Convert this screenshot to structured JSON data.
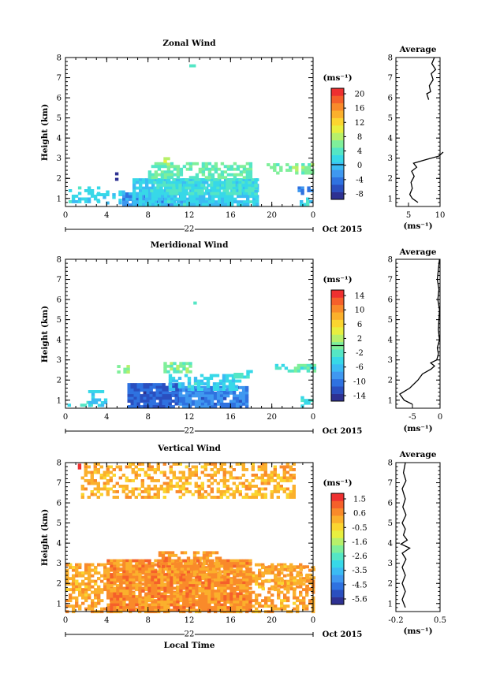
{
  "x_axis": {
    "ticks": [
      "0",
      "4",
      "8",
      "12",
      "16",
      "20",
      "0"
    ],
    "date_label": "22",
    "month_label": "Oct 2015",
    "xlabel": "Local Time"
  },
  "y_axis": {
    "ylabel": "Height (km)",
    "ticks": [
      "1",
      "2",
      "3",
      "4",
      "5",
      "6",
      "7",
      "8"
    ],
    "range": [
      0.6,
      8.0
    ]
  },
  "unit": "(ms⁻¹)",
  "avg_title": "Average",
  "chart_data": [
    {
      "type": "heatmap",
      "title": "Zonal Wind",
      "xlabel": "",
      "ylabel": "Height (km)",
      "x_range_hours": [
        0,
        24
      ],
      "y_range_km": [
        0.6,
        8.0
      ],
      "colorbar": {
        "ticks": [
          "20",
          "16",
          "12",
          "8",
          "4",
          "0",
          "-4",
          "-8"
        ],
        "min": -10,
        "max": 22,
        "zero_line": 0
      },
      "regions": [
        {
          "x0": 0.3,
          "x1": 3.3,
          "y0": 0.9,
          "y1": 1.6,
          "value": 1.5,
          "density": 0.45
        },
        {
          "x0": 3.0,
          "x1": 5.5,
          "y0": 0.8,
          "y1": 1.4,
          "value": 1.0,
          "density": 0.4
        },
        {
          "x0": 5.5,
          "x1": 12.5,
          "y0": 0.65,
          "y1": 1.3,
          "value": -2.5,
          "density": 0.95
        },
        {
          "x0": 6.5,
          "x1": 18.5,
          "y0": 0.7,
          "y1": 2.0,
          "value": 1.0,
          "density": 0.85
        },
        {
          "x0": 8.2,
          "x1": 18.5,
          "y0": 1.2,
          "y1": 2.0,
          "value": 3.0,
          "density": 0.75
        },
        {
          "x0": 8.0,
          "x1": 18.0,
          "y0": 2.0,
          "y1": 2.8,
          "value": 5.0,
          "density": 0.6
        },
        {
          "x0": 4.5,
          "x1": 5.0,
          "y0": 1.9,
          "y1": 2.3,
          "value": -8.0,
          "density": 0.5
        },
        {
          "x0": 18.0,
          "x1": 18.6,
          "y0": 1.1,
          "y1": 1.7,
          "value": 2.0,
          "density": 0.6
        },
        {
          "x0": 19.5,
          "x1": 24.0,
          "y0": 2.3,
          "y1": 2.75,
          "value": 6.0,
          "density": 0.55
        },
        {
          "x0": 22.5,
          "x1": 23.9,
          "y0": 1.2,
          "y1": 1.6,
          "value": -4.0,
          "density": 0.5
        },
        {
          "x0": 22.7,
          "x1": 23.9,
          "y0": 0.7,
          "y1": 1.05,
          "value": 1.5,
          "density": 0.5
        },
        {
          "x0": 9.5,
          "x1": 10.0,
          "y0": 2.75,
          "y1": 3.05,
          "value": 9.0,
          "density": 0.6
        },
        {
          "x0": 12.0,
          "x1": 12.4,
          "y0": 7.6,
          "y1": 7.8,
          "value": 3.0,
          "density": 0.6
        }
      ],
      "average_profile": {
        "x_range": [
          3,
          10
        ],
        "xticks": [
          "5",
          "10"
        ],
        "points": [
          [
            6.5,
            0.8
          ],
          [
            5.6,
            1.0
          ],
          [
            5.2,
            1.2
          ],
          [
            5.6,
            1.5
          ],
          [
            5.4,
            1.8
          ],
          [
            5.9,
            2.1
          ],
          [
            5.5,
            2.35
          ],
          [
            6.3,
            2.55
          ],
          [
            5.8,
            2.75
          ],
          [
            8.0,
            2.95
          ],
          [
            9.8,
            3.1
          ],
          [
            10.5,
            3.3
          ]
        ],
        "points_upper": [
          [
            8.2,
            5.9
          ],
          [
            7.9,
            6.2
          ],
          [
            8.5,
            6.3
          ],
          [
            8.3,
            6.6
          ],
          [
            8.9,
            6.9
          ],
          [
            8.6,
            7.2
          ],
          [
            9.3,
            7.4
          ],
          [
            8.7,
            7.7
          ],
          [
            9.1,
            8.0
          ]
        ]
      }
    },
    {
      "type": "heatmap",
      "title": "Meridional Wind",
      "xlabel": "",
      "ylabel": "Height (km)",
      "x_range_hours": [
        0,
        24
      ],
      "y_range_km": [
        0.6,
        8.0
      ],
      "colorbar": {
        "ticks": [
          "14",
          "10",
          "6",
          "2",
          "-2",
          "-6",
          "-10",
          "-14"
        ],
        "min": -16,
        "max": 16,
        "zero_line": 0
      },
      "regions": [
        {
          "x0": 0.2,
          "x1": 2.5,
          "y0": 0.8,
          "y1": 1.1,
          "value": -3.0,
          "density": 0.4
        },
        {
          "x0": 2.2,
          "x1": 4.0,
          "y0": 0.8,
          "y1": 1.5,
          "value": -5.0,
          "density": 0.4
        },
        {
          "x0": 6.0,
          "x1": 11.0,
          "y0": 0.65,
          "y1": 1.85,
          "value": -12.0,
          "density": 0.95
        },
        {
          "x0": 11.0,
          "x1": 17.5,
          "y0": 0.65,
          "y1": 1.7,
          "value": -10.0,
          "density": 0.9
        },
        {
          "x0": 10.0,
          "x1": 17.0,
          "y0": 1.5,
          "y1": 2.3,
          "value": -5.0,
          "density": 0.6
        },
        {
          "x0": 5.0,
          "x1": 6.2,
          "y0": 2.45,
          "y1": 2.75,
          "value": 0.0,
          "density": 0.6
        },
        {
          "x0": 9.5,
          "x1": 12.0,
          "y0": 2.4,
          "y1": 2.9,
          "value": 0.0,
          "density": 0.6
        },
        {
          "x0": 16.0,
          "x1": 18.0,
          "y0": 2.1,
          "y1": 2.5,
          "value": -3.0,
          "density": 0.5
        },
        {
          "x0": 20.0,
          "x1": 24.0,
          "y0": 2.5,
          "y1": 2.8,
          "value": -2.0,
          "density": 0.5
        },
        {
          "x0": 22.8,
          "x1": 23.9,
          "y0": 0.7,
          "y1": 1.2,
          "value": -3.0,
          "density": 0.4
        },
        {
          "x0": 12.4,
          "x1": 12.8,
          "y0": 5.7,
          "y1": 5.9,
          "value": -2.0,
          "density": 0.5
        }
      ],
      "average_profile": {
        "x_range": [
          -8,
          0
        ],
        "xticks": [
          "-5",
          "0"
        ],
        "points": [
          [
            -5.0,
            0.8
          ],
          [
            -6.5,
            1.0
          ],
          [
            -7.3,
            1.3
          ],
          [
            -5.5,
            1.6
          ],
          [
            -4.0,
            2.0
          ],
          [
            -3.2,
            2.3
          ],
          [
            -1.6,
            2.55
          ],
          [
            -1.0,
            2.7
          ],
          [
            -1.7,
            2.85
          ],
          [
            -0.6,
            3.0
          ],
          [
            -0.3,
            3.3
          ],
          [
            -0.5,
            3.6
          ],
          [
            -0.1,
            4.0
          ],
          [
            -0.3,
            4.5
          ],
          [
            -0.2,
            5.0
          ],
          [
            -0.1,
            5.5
          ],
          [
            -0.4,
            6.0
          ],
          [
            -0.2,
            6.5
          ],
          [
            -0.5,
            7.0
          ],
          [
            -0.3,
            7.5
          ],
          [
            -0.1,
            8.0
          ]
        ]
      }
    },
    {
      "type": "heatmap",
      "title": "Vertical Wind",
      "xlabel": "Local Time",
      "ylabel": "Height (km)",
      "x_range_hours": [
        0,
        24
      ],
      "y_range_km": [
        0.6,
        8.0
      ],
      "colorbar": {
        "ticks": [
          "1.5",
          "0.6",
          "-0.5",
          "-1.6",
          "-2.6",
          "-3.5",
          "-4.5",
          "-5.6"
        ],
        "min": -6.0,
        "max": 2.0,
        "zero_line": null
      },
      "regions": [
        {
          "x0": 0.0,
          "x1": 24.0,
          "y0": 0.65,
          "y1": 3.0,
          "value": 0.3,
          "density": 0.55
        },
        {
          "x0": 4.0,
          "x1": 18.0,
          "y0": 0.65,
          "y1": 3.2,
          "value": 0.6,
          "density": 0.85
        },
        {
          "x0": 9.0,
          "x1": 15.0,
          "y0": 2.5,
          "y1": 3.6,
          "value": 0.5,
          "density": 0.5
        },
        {
          "x0": 1.5,
          "x1": 22.0,
          "y0": 6.3,
          "y1": 8.0,
          "value": 0.1,
          "density": 0.5
        },
        {
          "x0": 0.0,
          "x1": 3.5,
          "y0": 1.6,
          "y1": 3.0,
          "value": 0.2,
          "density": 0.35
        },
        {
          "x0": 19.0,
          "x1": 24.0,
          "y0": 1.8,
          "y1": 2.9,
          "value": 0.2,
          "density": 0.45
        },
        {
          "x0": 1.2,
          "x1": 1.5,
          "y0": 7.7,
          "y1": 7.95,
          "value": 1.8,
          "density": 0.6
        }
      ],
      "average_profile": {
        "x_range": [
          -0.2,
          0.5
        ],
        "xticks": [
          "-0.2",
          "0.5"
        ],
        "points": [
          [
            -0.05,
            0.8
          ],
          [
            -0.1,
            1.2
          ],
          [
            -0.05,
            1.6
          ],
          [
            -0.1,
            2.0
          ],
          [
            -0.05,
            2.4
          ],
          [
            -0.1,
            2.8
          ],
          [
            -0.04,
            3.2
          ],
          [
            -0.1,
            3.5
          ],
          [
            0.02,
            3.75
          ],
          [
            -0.12,
            3.95
          ],
          [
            -0.02,
            4.15
          ],
          [
            -0.08,
            4.4
          ],
          [
            -0.05,
            4.7
          ],
          [
            -0.1,
            5.0
          ],
          [
            -0.04,
            5.4
          ],
          [
            -0.09,
            5.8
          ],
          [
            -0.05,
            6.2
          ],
          [
            -0.1,
            6.7
          ],
          [
            -0.04,
            7.1
          ],
          [
            -0.08,
            7.5
          ],
          [
            -0.05,
            8.0
          ]
        ]
      }
    }
  ]
}
